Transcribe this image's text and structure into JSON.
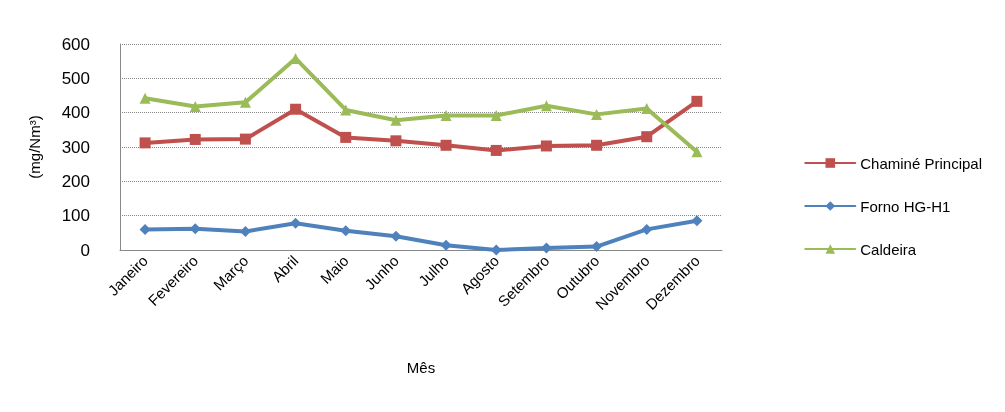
{
  "chart_data": {
    "type": "line",
    "xlabel": "Mês",
    "ylabel": "(mg/Nm³)",
    "categories": [
      "Janeiro",
      "Fevereiro",
      "Março",
      "Abril",
      "Maio",
      "Junho",
      "Julho",
      "Agosto",
      "Setembro",
      "Outubro",
      "Novembro",
      "Dezembro"
    ],
    "series": [
      {
        "name": "Chaminé Principal",
        "color": "#c0504d",
        "marker": "square",
        "values": [
          312,
          322,
          323,
          410,
          328,
          318,
          305,
          290,
          303,
          305,
          330,
          433
        ]
      },
      {
        "name": "Forno HG-H1",
        "color": "#4f81bd",
        "marker": "diamond",
        "values": [
          60,
          62,
          54,
          78,
          56,
          40,
          14,
          0,
          6,
          10,
          60,
          85
        ]
      },
      {
        "name": "Caldeira",
        "color": "#9bbb59",
        "marker": "triangle",
        "values": [
          442,
          418,
          430,
          558,
          408,
          378,
          392,
          392,
          420,
          395,
          412,
          286
        ]
      }
    ],
    "ylim": [
      0,
      600
    ],
    "yticks": [
      0,
      100,
      200,
      300,
      400,
      500,
      600
    ],
    "grid": "y",
    "legend": "right",
    "line_style": "solid"
  }
}
